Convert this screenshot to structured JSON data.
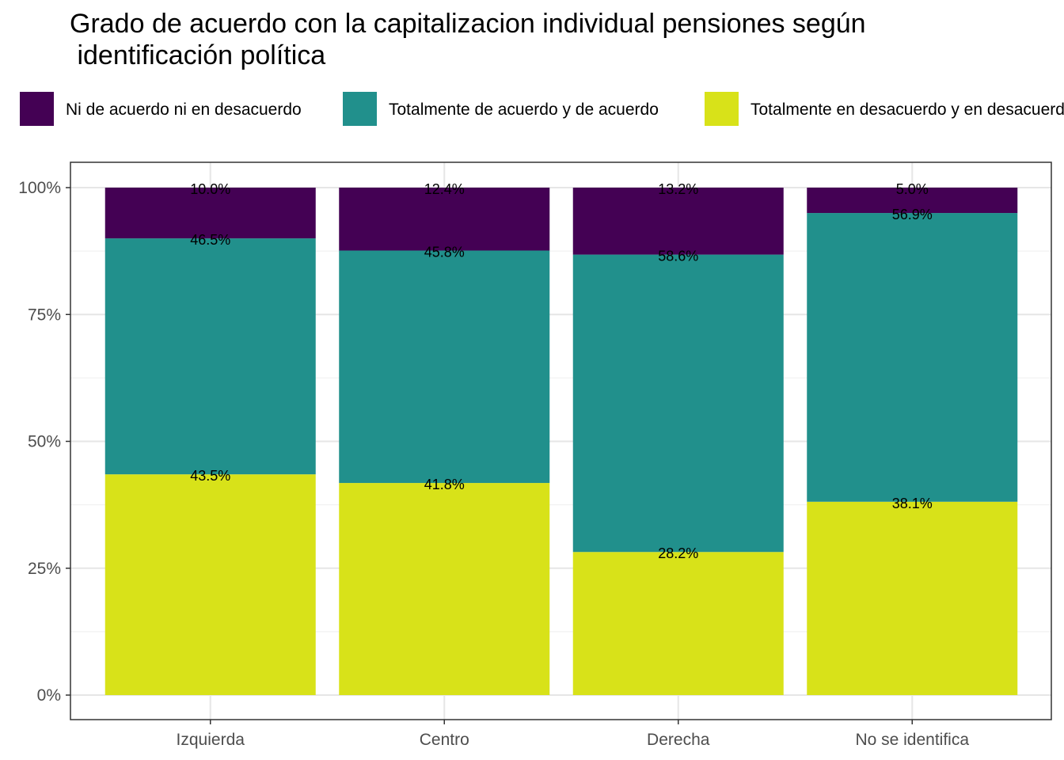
{
  "chart_data": {
    "type": "bar",
    "stacked": true,
    "title": "Grado de acuerdo con la capitalizacion individual pensiones según\n identificación política",
    "xlabel": "",
    "ylabel": "",
    "categories": [
      "Izquierda",
      "Centro",
      "Derecha",
      "No se identifica"
    ],
    "ylim": [
      0,
      100
    ],
    "yticks": [
      "0%",
      "25%",
      "50%",
      "75%",
      "100%"
    ],
    "grid": true,
    "legend_position": "top",
    "series": [
      {
        "name": "Ni de acuerdo ni en desacuerdo",
        "color": "#440154",
        "values": [
          10.0,
          12.4,
          13.2,
          5.0
        ],
        "labels": [
          "10.0%",
          "12.4%",
          "13.2%",
          "5.0%"
        ]
      },
      {
        "name": "Totalmente de acuerdo y de acuerdo",
        "color": "#21908C",
        "values": [
          46.5,
          45.8,
          58.6,
          56.9
        ],
        "labels": [
          "46.5%",
          "45.8%",
          "58.6%",
          "56.9%"
        ]
      },
      {
        "name": "Totalmente en desacuerdo y en desacuerdo",
        "color": "#D8E219",
        "values": [
          43.5,
          41.8,
          28.2,
          38.1
        ],
        "labels": [
          "43.5%",
          "41.8%",
          "28.2%",
          "38.1%"
        ]
      }
    ]
  }
}
